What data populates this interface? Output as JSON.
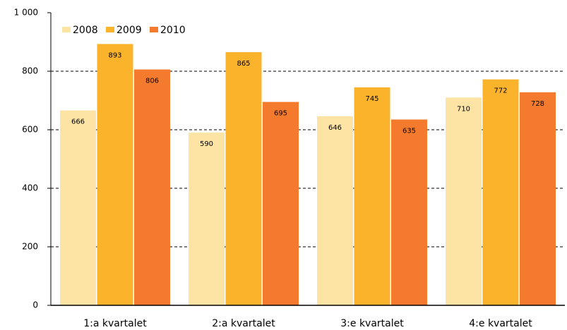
{
  "chart_data": {
    "type": "bar",
    "categories": [
      "1:a kvartalet",
      "2:a kvartalet",
      "3:e kvartalet",
      "4:e kvartalet"
    ],
    "series": [
      {
        "name": "2008",
        "color": "#fde4a5",
        "values": [
          666,
          590,
          646,
          710
        ]
      },
      {
        "name": "2009",
        "color": "#fbb32b",
        "values": [
          893,
          865,
          745,
          772
        ]
      },
      {
        "name": "2010",
        "color": "#f47b2e",
        "values": [
          806,
          695,
          635,
          728
        ]
      }
    ],
    "ylim": [
      0,
      1000
    ],
    "yticks": [
      0,
      200,
      400,
      600,
      800,
      {
        "value": 1000,
        "label": "1 000"
      }
    ],
    "grid": true,
    "legend": "top-left"
  }
}
